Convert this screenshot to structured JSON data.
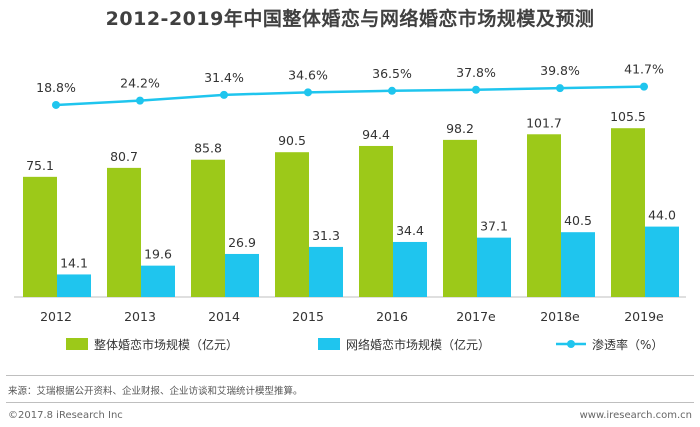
{
  "chart_data": {
    "type": "bar",
    "title": "2012-2019年中国整体婚恋与网络婚恋市场规模及预测",
    "categories": [
      "2012",
      "2013",
      "2014",
      "2015",
      "2016",
      "2017e",
      "2018e",
      "2019e"
    ],
    "series": [
      {
        "name": "整体婚恋市场规模（亿元）",
        "type": "bar",
        "color": "#9CC919",
        "values": [
          75.1,
          80.7,
          85.8,
          90.5,
          94.4,
          98.2,
          101.7,
          105.5
        ],
        "labels": [
          "75.1",
          "80.7",
          "85.8",
          "90.5",
          "94.4",
          "98.2",
          "101.7",
          "105.5"
        ]
      },
      {
        "name": "网络婚恋市场规模（亿元）",
        "type": "bar",
        "color": "#1FC5EE",
        "values": [
          14.1,
          19.6,
          26.9,
          31.3,
          34.4,
          37.1,
          40.5,
          44.0
        ],
        "labels": [
          "14.1",
          "19.6",
          "26.9",
          "31.3",
          "34.4",
          "37.1",
          "40.5",
          "44.0"
        ]
      },
      {
        "name": "渗透率（%）",
        "type": "line",
        "color": "#1FC5EE",
        "values": [
          18.8,
          24.2,
          31.4,
          34.6,
          36.5,
          37.8,
          39.8,
          41.7
        ],
        "labels": [
          "18.8%",
          "24.2%",
          "31.4%",
          "34.6%",
          "36.5%",
          "37.8%",
          "39.8%",
          "41.7%"
        ]
      }
    ],
    "legend_position": "bottom",
    "grid": false
  },
  "footer": {
    "source": "来源：艾瑞根据公开资料、企业财报、企业访谈和艾瑞统计模型推算。",
    "copyright": "©2017.8 iResearch Inc",
    "website": "www.iresearch.com.cn"
  },
  "colors": {
    "total": "#9CC919",
    "online": "#1FC5EE",
    "line": "#1FC5EE",
    "axis": "#bfbfbf"
  }
}
